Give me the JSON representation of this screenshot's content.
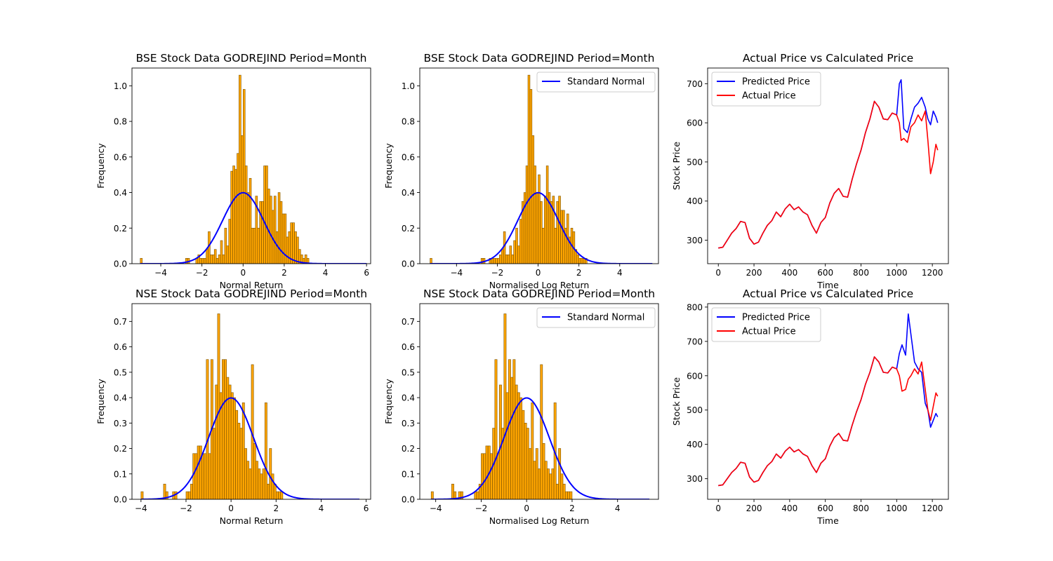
{
  "figure": {
    "background": "#ffffff"
  },
  "colors": {
    "hist_fill": "#ffa500",
    "hist_edge": "#7a5200",
    "normal_curve": "#0000ff",
    "predicted": "#0000ff",
    "actual": "#ff0000"
  },
  "chart_data": [
    {
      "type": "bar",
      "title": "BSE Stock Data GODREJIND Period=Month",
      "xlabel": "Normal Return",
      "ylabel": "Frequency",
      "xlim": [
        -5.4,
        6.2
      ],
      "ylim": [
        0,
        1.1
      ],
      "xticks": [
        -4,
        -2,
        0,
        2,
        4,
        6
      ],
      "yticks": [
        0.0,
        0.2,
        0.4,
        0.6,
        0.8,
        1.0
      ],
      "curve": {
        "name": "Standard Normal",
        "mean": 0,
        "sd": 1,
        "x_range": [
          -5.0,
          6.0
        ]
      },
      "legend": null,
      "bins": {
        "start": -5.0,
        "width": 0.1,
        "values": [
          0.03,
          0,
          0,
          0,
          0,
          0,
          0,
          0,
          0,
          0,
          0,
          0,
          0,
          0,
          0,
          0,
          0,
          0,
          0,
          0,
          0,
          0,
          0.03,
          0.03,
          0,
          0,
          0,
          0.03,
          0.05,
          0.03,
          0.03,
          0.03,
          0.08,
          0.18,
          0.05,
          0.05,
          0.08,
          0.03,
          0.05,
          0.13,
          0.05,
          0.2,
          0.1,
          0.25,
          0.52,
          0.55,
          0.53,
          0.62,
          1.06,
          0.72,
          0.98,
          0.55,
          0.4,
          0.48,
          0.2,
          0.2,
          0.38,
          0.2,
          0.35,
          0.35,
          0.55,
          0.55,
          0.42,
          0.38,
          0.3,
          0.38,
          0.18,
          0.4,
          0.35,
          0.28,
          0.28,
          0.15,
          0.18,
          0.23,
          0.23,
          0.18,
          0.15,
          0.08,
          0.05,
          0.03,
          0.05,
          0.03,
          0,
          0,
          0,
          0,
          0,
          0,
          0,
          0,
          0,
          0,
          0,
          0,
          0,
          0,
          0,
          0,
          0,
          0,
          0,
          0,
          0,
          0,
          0,
          0,
          0,
          0,
          0,
          0,
          0
        ]
      }
    },
    {
      "type": "bar",
      "title": "BSE Stock Data GODREJIND Period=Month",
      "xlabel": "Normalised Log Return",
      "ylabel": "Frequency",
      "xlim": [
        -5.8,
        5.9
      ],
      "ylim": [
        0,
        1.1
      ],
      "xticks": [
        -4,
        -2,
        0,
        2,
        4,
        6
      ],
      "yticks": [
        0.0,
        0.2,
        0.4,
        0.6,
        0.8,
        1.0
      ],
      "curve": {
        "name": "Standard Normal",
        "mean": 0,
        "sd": 1,
        "x_range": [
          -5.3,
          5.6
        ]
      },
      "legend": {
        "labels": [
          "Standard Normal"
        ],
        "position": "upper right"
      },
      "bins": {
        "start": -5.3,
        "width": 0.1,
        "values": [
          0.03,
          0,
          0,
          0,
          0,
          0,
          0,
          0,
          0,
          0,
          0,
          0,
          0,
          0,
          0,
          0,
          0,
          0,
          0,
          0,
          0,
          0,
          0,
          0,
          0,
          0.03,
          0.03,
          0,
          0,
          0.03,
          0.03,
          0.03,
          0.03,
          0.03,
          0.05,
          0.08,
          0.18,
          0.05,
          0.05,
          0.1,
          0.05,
          0.13,
          0.2,
          0.1,
          0.25,
          0.35,
          0.4,
          0.55,
          1.06,
          0.98,
          0.72,
          0.55,
          0.4,
          0.5,
          0.35,
          0.2,
          0.38,
          0.55,
          0.4,
          0.35,
          0.38,
          0.2,
          0.35,
          0.38,
          0.3,
          0.3,
          0.2,
          0.28,
          0.15,
          0.2,
          0.18,
          0.08,
          0.05,
          0.03,
          0.03,
          0.03,
          0.03,
          0,
          0,
          0,
          0,
          0,
          0,
          0,
          0,
          0,
          0,
          0,
          0,
          0,
          0,
          0,
          0,
          0,
          0,
          0,
          0,
          0,
          0,
          0,
          0,
          0,
          0,
          0,
          0,
          0,
          0,
          0,
          0
        ]
      }
    },
    {
      "type": "line",
      "title": "Actual Price vs Calculated Price",
      "xlabel": "Time",
      "ylabel": "Stock Price",
      "xlim": [
        -60,
        1290
      ],
      "ylim": [
        240,
        740
      ],
      "xticks": [
        0,
        200,
        400,
        600,
        800,
        1000,
        1200
      ],
      "yticks": [
        300,
        400,
        500,
        600,
        700
      ],
      "legend": {
        "labels": [
          "Predicted Price",
          "Actual Price"
        ],
        "position": "upper left"
      },
      "series": [
        {
          "name": "Predicted Price",
          "x": [
            0,
            25,
            50,
            75,
            100,
            125,
            150,
            175,
            200,
            225,
            250,
            275,
            300,
            325,
            350,
            375,
            400,
            425,
            450,
            475,
            500,
            525,
            550,
            575,
            600,
            625,
            650,
            675,
            700,
            725,
            750,
            775,
            800,
            825,
            850,
            875,
            900,
            925,
            950,
            975,
            1000,
            1015,
            1025,
            1040,
            1060,
            1080,
            1100,
            1120,
            1140,
            1160,
            1175,
            1190,
            1205,
            1220,
            1230
          ],
          "y": [
            280,
            282,
            300,
            318,
            330,
            348,
            345,
            305,
            290,
            295,
            318,
            338,
            350,
            372,
            360,
            380,
            392,
            378,
            385,
            372,
            365,
            338,
            318,
            345,
            358,
            395,
            420,
            432,
            412,
            410,
            455,
            495,
            530,
            575,
            610,
            655,
            640,
            610,
            608,
            625,
            620,
            700,
            710,
            585,
            575,
            610,
            640,
            650,
            665,
            640,
            610,
            595,
            630,
            615,
            600
          ]
        },
        {
          "name": "Actual Price",
          "x": [
            0,
            25,
            50,
            75,
            100,
            125,
            150,
            175,
            200,
            225,
            250,
            275,
            300,
            325,
            350,
            375,
            400,
            425,
            450,
            475,
            500,
            525,
            550,
            575,
            600,
            625,
            650,
            675,
            700,
            725,
            750,
            775,
            800,
            825,
            850,
            875,
            900,
            925,
            950,
            975,
            1000,
            1015,
            1025,
            1040,
            1060,
            1080,
            1100,
            1120,
            1140,
            1160,
            1175,
            1190,
            1205,
            1220,
            1230
          ],
          "y": [
            280,
            282,
            300,
            318,
            330,
            348,
            345,
            305,
            290,
            295,
            318,
            338,
            350,
            372,
            360,
            380,
            392,
            378,
            385,
            372,
            365,
            338,
            318,
            345,
            358,
            395,
            420,
            432,
            412,
            410,
            455,
            495,
            530,
            575,
            610,
            655,
            640,
            610,
            608,
            625,
            620,
            600,
            555,
            560,
            550,
            590,
            600,
            620,
            605,
            630,
            555,
            470,
            500,
            545,
            530
          ]
        }
      ]
    },
    {
      "type": "bar",
      "title": "NSE Stock Data GODREJIND Period=Month",
      "xlabel": "Normal Return",
      "ylabel": "Frequency",
      "xlim": [
        -4.4,
        6.2
      ],
      "ylim": [
        0,
        0.77
      ],
      "xticks": [
        -4,
        -2,
        0,
        2,
        4,
        6
      ],
      "yticks": [
        0.0,
        0.1,
        0.2,
        0.3,
        0.4,
        0.5,
        0.6,
        0.7
      ],
      "curve": {
        "name": "Standard Normal",
        "mean": 0,
        "sd": 1,
        "x_range": [
          -4.0,
          5.7
        ]
      },
      "legend": null,
      "bins": {
        "start": -4.0,
        "width": 0.1,
        "values": [
          0.03,
          0,
          0,
          0,
          0,
          0,
          0,
          0,
          0,
          0,
          0.06,
          0.03,
          0,
          0,
          0.03,
          0.03,
          0,
          0,
          0,
          0,
          0.03,
          0.03,
          0.06,
          0.18,
          0.18,
          0.21,
          0.21,
          0.18,
          0.18,
          0.55,
          0.18,
          0.55,
          0.28,
          0.45,
          0.73,
          0.42,
          0.55,
          0.55,
          0.48,
          0.45,
          0.42,
          0.4,
          0.35,
          0.3,
          0.28,
          0.38,
          0.2,
          0.15,
          0.12,
          0.53,
          0.22,
          0.15,
          0.12,
          0.1,
          0.12,
          0.38,
          0.06,
          0.2,
          0.1,
          0.06,
          0.03,
          0.03,
          0.03,
          0,
          0,
          0,
          0,
          0,
          0,
          0,
          0,
          0,
          0,
          0,
          0,
          0,
          0,
          0,
          0,
          0,
          0,
          0,
          0,
          0,
          0,
          0,
          0,
          0,
          0,
          0,
          0,
          0,
          0,
          0,
          0,
          0,
          0
        ]
      }
    },
    {
      "type": "bar",
      "title": "NSE Stock Data GODREJIND Period=Month",
      "xlabel": "Normalised Log Return",
      "ylabel": "Frequency",
      "xlim": [
        -4.7,
        5.8
      ],
      "ylim": [
        0,
        0.77
      ],
      "xticks": [
        -4,
        -2,
        0,
        2,
        4
      ],
      "yticks": [
        0.0,
        0.1,
        0.2,
        0.3,
        0.4,
        0.5,
        0.6,
        0.7
      ],
      "curve": {
        "name": "Standard Normal",
        "mean": 0,
        "sd": 1,
        "x_range": [
          -4.2,
          5.4
        ]
      },
      "legend": {
        "labels": [
          "Standard Normal"
        ],
        "position": "upper right"
      },
      "bins": {
        "start": -4.2,
        "width": 0.1,
        "values": [
          0.03,
          0,
          0,
          0,
          0,
          0,
          0,
          0,
          0,
          0.06,
          0.03,
          0,
          0.03,
          0.03,
          0,
          0,
          0,
          0,
          0,
          0.03,
          0.03,
          0.06,
          0.18,
          0.18,
          0.21,
          0.21,
          0.18,
          0.28,
          0.55,
          0.18,
          0.45,
          0.28,
          0.73,
          0.42,
          0.55,
          0.48,
          0.55,
          0.45,
          0.42,
          0.4,
          0.35,
          0.3,
          0.28,
          0.2,
          0.38,
          0.15,
          0.2,
          0.12,
          0.53,
          0.22,
          0.15,
          0.12,
          0.1,
          0.12,
          0.38,
          0.06,
          0.2,
          0.1,
          0.06,
          0.03,
          0.03,
          0.03,
          0,
          0,
          0,
          0,
          0,
          0,
          0,
          0,
          0,
          0,
          0,
          0,
          0,
          0,
          0,
          0,
          0,
          0,
          0,
          0,
          0,
          0,
          0,
          0,
          0,
          0,
          0,
          0,
          0,
          0,
          0,
          0,
          0,
          0
        ]
      }
    },
    {
      "type": "line",
      "title": "Actual Price vs Calculated Price",
      "xlabel": "Time",
      "ylabel": "Stock Price",
      "xlim": [
        -60,
        1290
      ],
      "ylim": [
        240,
        810
      ],
      "xticks": [
        0,
        200,
        400,
        600,
        800,
        1000,
        1200
      ],
      "yticks": [
        300,
        400,
        500,
        600,
        700,
        800
      ],
      "legend": {
        "labels": [
          "Predicted Price",
          "Actual Price"
        ],
        "position": "upper left"
      },
      "series": [
        {
          "name": "Predicted Price",
          "x": [
            0,
            25,
            50,
            75,
            100,
            125,
            150,
            175,
            200,
            225,
            250,
            275,
            300,
            325,
            350,
            375,
            400,
            425,
            450,
            475,
            500,
            525,
            550,
            575,
            600,
            625,
            650,
            675,
            700,
            725,
            750,
            775,
            800,
            825,
            850,
            875,
            900,
            925,
            950,
            975,
            1000,
            1015,
            1030,
            1050,
            1065,
            1080,
            1100,
            1120,
            1140,
            1160,
            1175,
            1190,
            1205,
            1220,
            1230
          ],
          "y": [
            280,
            282,
            300,
            318,
            330,
            348,
            345,
            305,
            290,
            295,
            318,
            338,
            350,
            372,
            360,
            380,
            392,
            378,
            385,
            372,
            365,
            338,
            318,
            345,
            358,
            395,
            420,
            432,
            412,
            410,
            455,
            495,
            530,
            575,
            610,
            655,
            640,
            610,
            608,
            625,
            620,
            665,
            690,
            660,
            780,
            720,
            640,
            620,
            610,
            520,
            500,
            450,
            470,
            490,
            480
          ]
        },
        {
          "name": "Actual Price",
          "x": [
            0,
            25,
            50,
            75,
            100,
            125,
            150,
            175,
            200,
            225,
            250,
            275,
            300,
            325,
            350,
            375,
            400,
            425,
            450,
            475,
            500,
            525,
            550,
            575,
            600,
            625,
            650,
            675,
            700,
            725,
            750,
            775,
            800,
            825,
            850,
            875,
            900,
            925,
            950,
            975,
            1000,
            1015,
            1030,
            1050,
            1065,
            1080,
            1100,
            1120,
            1140,
            1160,
            1175,
            1190,
            1205,
            1220,
            1230
          ],
          "y": [
            280,
            282,
            300,
            318,
            330,
            348,
            345,
            305,
            290,
            295,
            318,
            338,
            350,
            372,
            360,
            380,
            392,
            378,
            385,
            372,
            365,
            338,
            318,
            345,
            358,
            395,
            420,
            432,
            412,
            410,
            455,
            495,
            530,
            575,
            610,
            655,
            640,
            610,
            608,
            625,
            620,
            600,
            555,
            560,
            590,
            600,
            620,
            605,
            640,
            560,
            500,
            470,
            510,
            550,
            540
          ]
        }
      ]
    }
  ]
}
